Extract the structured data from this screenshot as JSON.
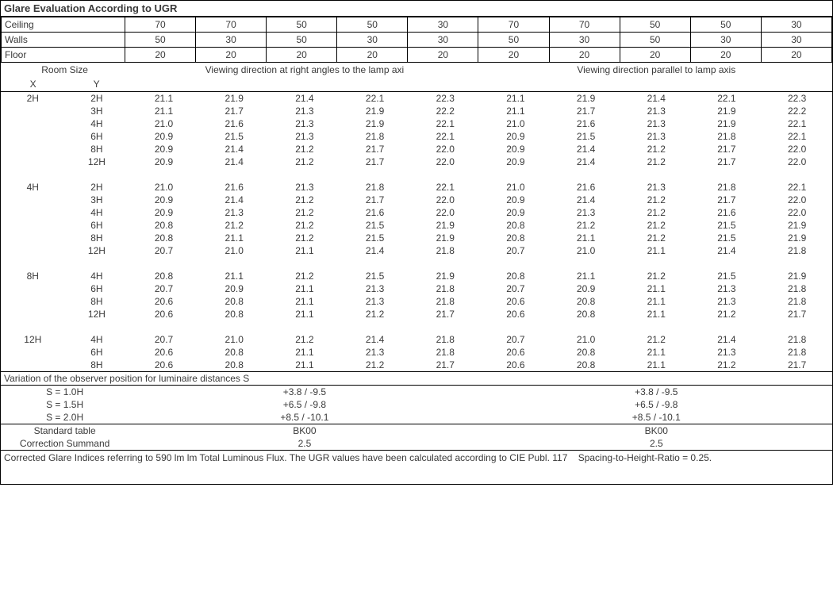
{
  "title": "Glare Evaluation According to UGR",
  "headers": {
    "ceiling_label": "Ceiling",
    "walls_label": "Walls",
    "floor_label": "Floor",
    "ceiling": [
      "70",
      "70",
      "50",
      "50",
      "30",
      "70",
      "70",
      "50",
      "50",
      "30"
    ],
    "walls": [
      "50",
      "30",
      "50",
      "30",
      "30",
      "50",
      "30",
      "50",
      "30",
      "30"
    ],
    "floor": [
      "20",
      "20",
      "20",
      "20",
      "20",
      "20",
      "20",
      "20",
      "20",
      "20"
    ]
  },
  "subhead": {
    "room_size": "Room Size",
    "x": "X",
    "y": "Y",
    "dir_left": "Viewing direction at right angles to the lamp axi",
    "dir_right": "Viewing direction parallel to lamp axis"
  },
  "groups": [
    {
      "x": "2H",
      "rows": [
        {
          "y": "2H",
          "l": [
            "21.1",
            "21.9",
            "21.4",
            "22.1",
            "22.3"
          ],
          "r": [
            "21.1",
            "21.9",
            "21.4",
            "22.1",
            "22.3"
          ]
        },
        {
          "y": "3H",
          "l": [
            "21.1",
            "21.7",
            "21.3",
            "21.9",
            "22.2"
          ],
          "r": [
            "21.1",
            "21.7",
            "21.3",
            "21.9",
            "22.2"
          ]
        },
        {
          "y": "4H",
          "l": [
            "21.0",
            "21.6",
            "21.3",
            "21.9",
            "22.1"
          ],
          "r": [
            "21.0",
            "21.6",
            "21.3",
            "21.9",
            "22.1"
          ]
        },
        {
          "y": "6H",
          "l": [
            "20.9",
            "21.5",
            "21.3",
            "21.8",
            "22.1"
          ],
          "r": [
            "20.9",
            "21.5",
            "21.3",
            "21.8",
            "22.1"
          ]
        },
        {
          "y": "8H",
          "l": [
            "20.9",
            "21.4",
            "21.2",
            "21.7",
            "22.0"
          ],
          "r": [
            "20.9",
            "21.4",
            "21.2",
            "21.7",
            "22.0"
          ]
        },
        {
          "y": "12H",
          "l": [
            "20.9",
            "21.4",
            "21.2",
            "21.7",
            "22.0"
          ],
          "r": [
            "20.9",
            "21.4",
            "21.2",
            "21.7",
            "22.0"
          ]
        }
      ]
    },
    {
      "x": "4H",
      "rows": [
        {
          "y": "2H",
          "l": [
            "21.0",
            "21.6",
            "21.3",
            "21.8",
            "22.1"
          ],
          "r": [
            "21.0",
            "21.6",
            "21.3",
            "21.8",
            "22.1"
          ]
        },
        {
          "y": "3H",
          "l": [
            "20.9",
            "21.4",
            "21.2",
            "21.7",
            "22.0"
          ],
          "r": [
            "20.9",
            "21.4",
            "21.2",
            "21.7",
            "22.0"
          ]
        },
        {
          "y": "4H",
          "l": [
            "20.9",
            "21.3",
            "21.2",
            "21.6",
            "22.0"
          ],
          "r": [
            "20.9",
            "21.3",
            "21.2",
            "21.6",
            "22.0"
          ]
        },
        {
          "y": "6H",
          "l": [
            "20.8",
            "21.2",
            "21.2",
            "21.5",
            "21.9"
          ],
          "r": [
            "20.8",
            "21.2",
            "21.2",
            "21.5",
            "21.9"
          ]
        },
        {
          "y": "8H",
          "l": [
            "20.8",
            "21.1",
            "21.2",
            "21.5",
            "21.9"
          ],
          "r": [
            "20.8",
            "21.1",
            "21.2",
            "21.5",
            "21.9"
          ]
        },
        {
          "y": "12H",
          "l": [
            "20.7",
            "21.0",
            "21.1",
            "21.4",
            "21.8"
          ],
          "r": [
            "20.7",
            "21.0",
            "21.1",
            "21.4",
            "21.8"
          ]
        }
      ]
    },
    {
      "x": "8H",
      "rows": [
        {
          "y": "4H",
          "l": [
            "20.8",
            "21.1",
            "21.2",
            "21.5",
            "21.9"
          ],
          "r": [
            "20.8",
            "21.1",
            "21.2",
            "21.5",
            "21.9"
          ]
        },
        {
          "y": "6H",
          "l": [
            "20.7",
            "20.9",
            "21.1",
            "21.3",
            "21.8"
          ],
          "r": [
            "20.7",
            "20.9",
            "21.1",
            "21.3",
            "21.8"
          ]
        },
        {
          "y": "8H",
          "l": [
            "20.6",
            "20.8",
            "21.1",
            "21.3",
            "21.8"
          ],
          "r": [
            "20.6",
            "20.8",
            "21.1",
            "21.3",
            "21.8"
          ]
        },
        {
          "y": "12H",
          "l": [
            "20.6",
            "20.8",
            "21.1",
            "21.2",
            "21.7"
          ],
          "r": [
            "20.6",
            "20.8",
            "21.1",
            "21.2",
            "21.7"
          ]
        }
      ]
    },
    {
      "x": "12H",
      "rows": [
        {
          "y": "4H",
          "l": [
            "20.7",
            "21.0",
            "21.2",
            "21.4",
            "21.8"
          ],
          "r": [
            "20.7",
            "21.0",
            "21.2",
            "21.4",
            "21.8"
          ]
        },
        {
          "y": "6H",
          "l": [
            "20.6",
            "20.8",
            "21.1",
            "21.3",
            "21.8"
          ],
          "r": [
            "20.6",
            "20.8",
            "21.1",
            "21.3",
            "21.8"
          ]
        },
        {
          "y": "8H",
          "l": [
            "20.6",
            "20.8",
            "21.1",
            "21.2",
            "21.7"
          ],
          "r": [
            "20.6",
            "20.8",
            "21.1",
            "21.2",
            "21.7"
          ]
        }
      ]
    }
  ],
  "variation": {
    "title": "Variation of the observer position for luminaire distances S",
    "rows": [
      {
        "label": "S = 1.0H",
        "l": "+3.8 / -9.5",
        "r": "+3.8 / -9.5"
      },
      {
        "label": "S = 1.5H",
        "l": "+6.5 / -9.8",
        "r": "+6.5 / -9.8"
      },
      {
        "label": "S = 2.0H",
        "l": "+8.5 / -10.1",
        "r": "+8.5 / -10.1"
      }
    ]
  },
  "std_table": {
    "label": "Standard table",
    "l": "BK00",
    "r": "BK00"
  },
  "corr_summand": {
    "label": "Correction Summand",
    "l": "2.5",
    "r": "2.5"
  },
  "footnote": "Corrected Glare Indices referring to 590 lm lm Total Luminous Flux. The UGR values have been calculated according to CIE Publ. 117    Spacing-to-Height-Ratio = 0.25."
}
